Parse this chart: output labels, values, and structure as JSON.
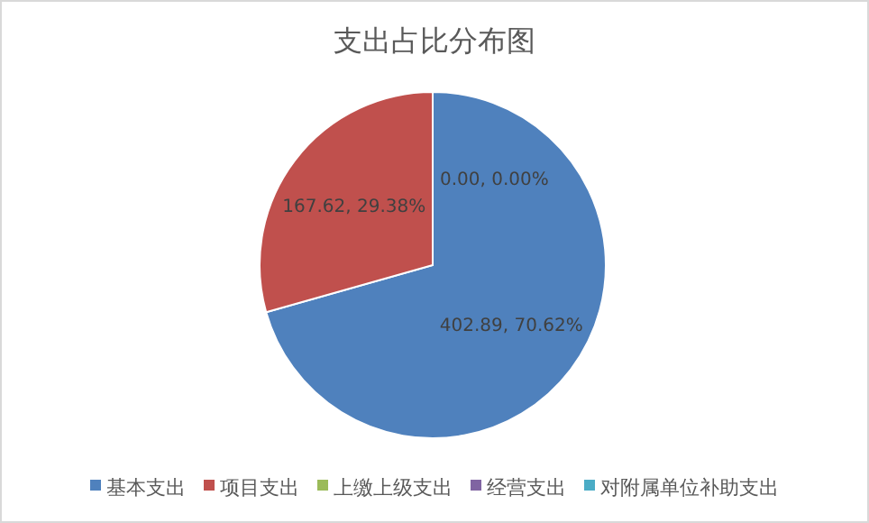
{
  "chart_data": {
    "type": "pie",
    "title": "支出占比分布图",
    "categories": [
      "基本支出",
      "项目支出",
      "上缴上级支出",
      "经营支出",
      "对附属单位补助支出"
    ],
    "values": [
      402.89,
      167.62,
      0,
      0,
      0
    ],
    "colors": [
      "#4f81bd",
      "#c0504d",
      "#9bbb59",
      "#8064a2",
      "#4bacc6"
    ],
    "value_labels": [
      "402.89, 70.62%",
      "167.62, 29.38%",
      "0.00, 0.00%",
      null,
      null
    ],
    "legend": "bottom"
  }
}
